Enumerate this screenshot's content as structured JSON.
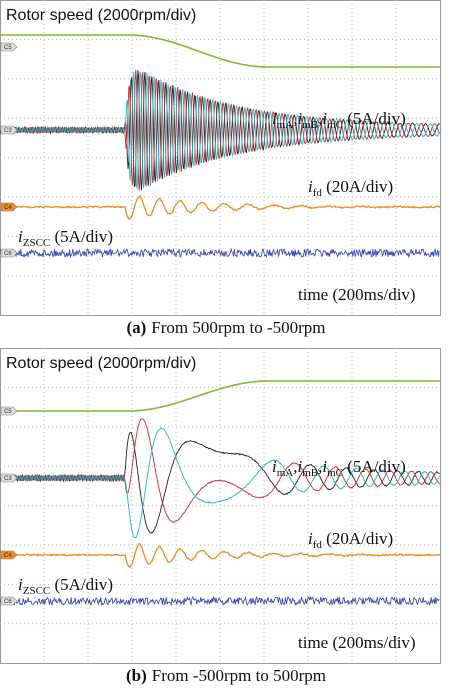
{
  "panels": [
    {
      "speed_label": "Rotor speed (2000rpm/div)",
      "channels": [
        "C5",
        "C3",
        "C4",
        "C6"
      ],
      "current_label": [
        "i",
        "mA",
        ",i",
        "mB",
        ",i",
        "mC",
        " (5A/div)"
      ],
      "field_label": [
        "i",
        "fd",
        " (20A/div)"
      ],
      "zscc_label": [
        "i",
        "ZSCC",
        " (5A/div)"
      ],
      "time_label": "time (200ms/div)",
      "caption": {
        "tag": "(a)",
        "text": "From 500rpm to -500rpm"
      }
    },
    {
      "speed_label": "Rotor speed (2000rpm/div)",
      "channels": [
        "C5",
        "C3",
        "C4",
        "C6"
      ],
      "current_label": [
        "i",
        "mA",
        ",i",
        "mB",
        ",i",
        "mC",
        " (5A/div)"
      ],
      "field_label": [
        "i",
        "fd",
        " (20A/div)"
      ],
      "zscc_label": [
        "i",
        "ZSCC",
        " (5A/div)"
      ],
      "time_label": "time (200ms/div)",
      "caption": {
        "tag": "(b)",
        "text": "From -500rpm to 500rpm"
      }
    }
  ]
}
